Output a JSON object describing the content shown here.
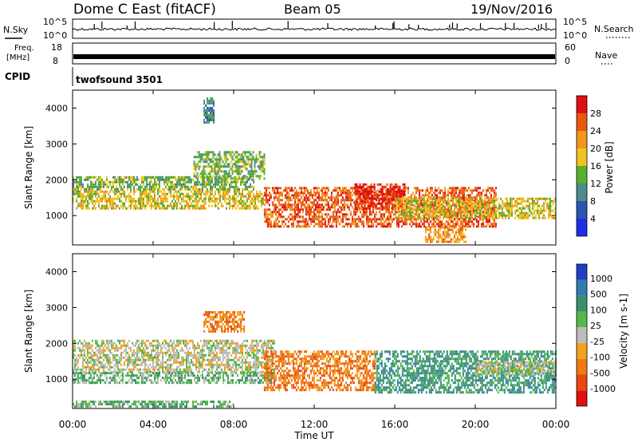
{
  "header": {
    "station": "Dome C East (fitACF)",
    "beam": "Beam 05",
    "date": "19/Nov/2016"
  },
  "top_strips": {
    "nsky": {
      "label": "N.Sky",
      "tick_high": "10^5",
      "tick_low": "10^0",
      "right_label": "N.Search",
      "right_tick_high": "10^5",
      "right_tick_low": "10^0"
    },
    "freq": {
      "label_line1": "Freq.",
      "label_line2": "[MHz]",
      "tick_high": "18",
      "tick_low": "8",
      "right_label": "Nave",
      "right_tick_high": "60",
      "right_tick_low": "0"
    },
    "cpid": {
      "label": "CPID",
      "value": "twofsound 3501"
    }
  },
  "power_panel": {
    "ylabel": "Slant Range [km]",
    "yticks": [
      "4000",
      "3000",
      "2000",
      "1000"
    ],
    "colorbar_label": "Power [dB]",
    "colorbar_ticks": [
      "28",
      "24",
      "20",
      "16",
      "12",
      "8",
      "4"
    ],
    "colors": [
      "#1f2ee6",
      "#2a55b2",
      "#4d8a8a",
      "#56b02e",
      "#f2c21f",
      "#f0961a",
      "#e8570f",
      "#e01010"
    ]
  },
  "velocity_panel": {
    "ylabel": "Slant Range [km]",
    "yticks": [
      "4000",
      "3000",
      "2000",
      "1000"
    ],
    "colorbar_label": "Velocity [m s-1]",
    "colorbar_ticks": [
      "1000",
      "500",
      "100",
      "25",
      "-25",
      "-100",
      "-500",
      "-1000"
    ],
    "colors": [
      "#1f3fc7",
      "#2f7dae",
      "#3c8f6e",
      "#52b94a",
      "#bcbcbc",
      "#f3a21f",
      "#f07a12",
      "#e8490f",
      "#e01010"
    ]
  },
  "xaxis": {
    "label": "Time UT",
    "ticks": [
      "00:00",
      "04:00",
      "08:00",
      "12:00",
      "16:00",
      "20:00",
      "00:00"
    ]
  },
  "chart_data": {
    "type": "heatmap",
    "title": "Dome C East (fitACF)  Beam 05  19/Nov/2016",
    "xlabel": "Time UT",
    "ylabel": "Slant Range [km]",
    "xlim": [
      0,
      24
    ],
    "ylim": [
      180,
      4500
    ],
    "panels": [
      {
        "name": "Power [dB]",
        "zlim": [
          0,
          30
        ],
        "regions": [
          {
            "t0": 0.0,
            "t1": 9.5,
            "r0": 1200,
            "r1": 1700,
            "level": 16
          },
          {
            "t0": 0.0,
            "t1": 9.0,
            "r0": 1700,
            "r1": 2100,
            "level": 12
          },
          {
            "t0": 6.0,
            "t1": 9.5,
            "r0": 2000,
            "r1": 2800,
            "level": 14
          },
          {
            "t0": 9.5,
            "t1": 21.0,
            "r0": 700,
            "r1": 1800,
            "level": 24
          },
          {
            "t0": 14.0,
            "t1": 16.5,
            "r0": 1200,
            "r1": 1900,
            "level": 27
          },
          {
            "t0": 16.0,
            "t1": 24.0,
            "r0": 900,
            "r1": 1500,
            "level": 16
          },
          {
            "t0": 17.5,
            "t1": 19.5,
            "r0": 250,
            "r1": 700,
            "level": 22
          },
          {
            "t0": 6.5,
            "t1": 7.0,
            "r0": 3600,
            "r1": 4300,
            "level": 10
          }
        ]
      },
      {
        "name": "Velocity [m s-1]",
        "zlim": [
          -1000,
          1000
        ],
        "regions": [
          {
            "t0": 0.0,
            "t1": 10.0,
            "r0": 1200,
            "r1": 2100,
            "level": 0
          },
          {
            "t0": 0.0,
            "t1": 10.0,
            "r0": 900,
            "r1": 1200,
            "level": 60
          },
          {
            "t0": 6.5,
            "t1": 8.5,
            "r0": 2300,
            "r1": 2900,
            "level": -300
          },
          {
            "t0": 9.5,
            "t1": 15.0,
            "r0": 700,
            "r1": 1800,
            "level": -150
          },
          {
            "t0": 15.0,
            "t1": 24.0,
            "r0": 600,
            "r1": 1800,
            "level": 200
          },
          {
            "t0": 20.0,
            "t1": 24.0,
            "r0": 1100,
            "r1": 1500,
            "level": 0
          },
          {
            "t0": 0.0,
            "t1": 8.0,
            "r0": 250,
            "r1": 400,
            "level": 50
          }
        ]
      }
    ]
  }
}
